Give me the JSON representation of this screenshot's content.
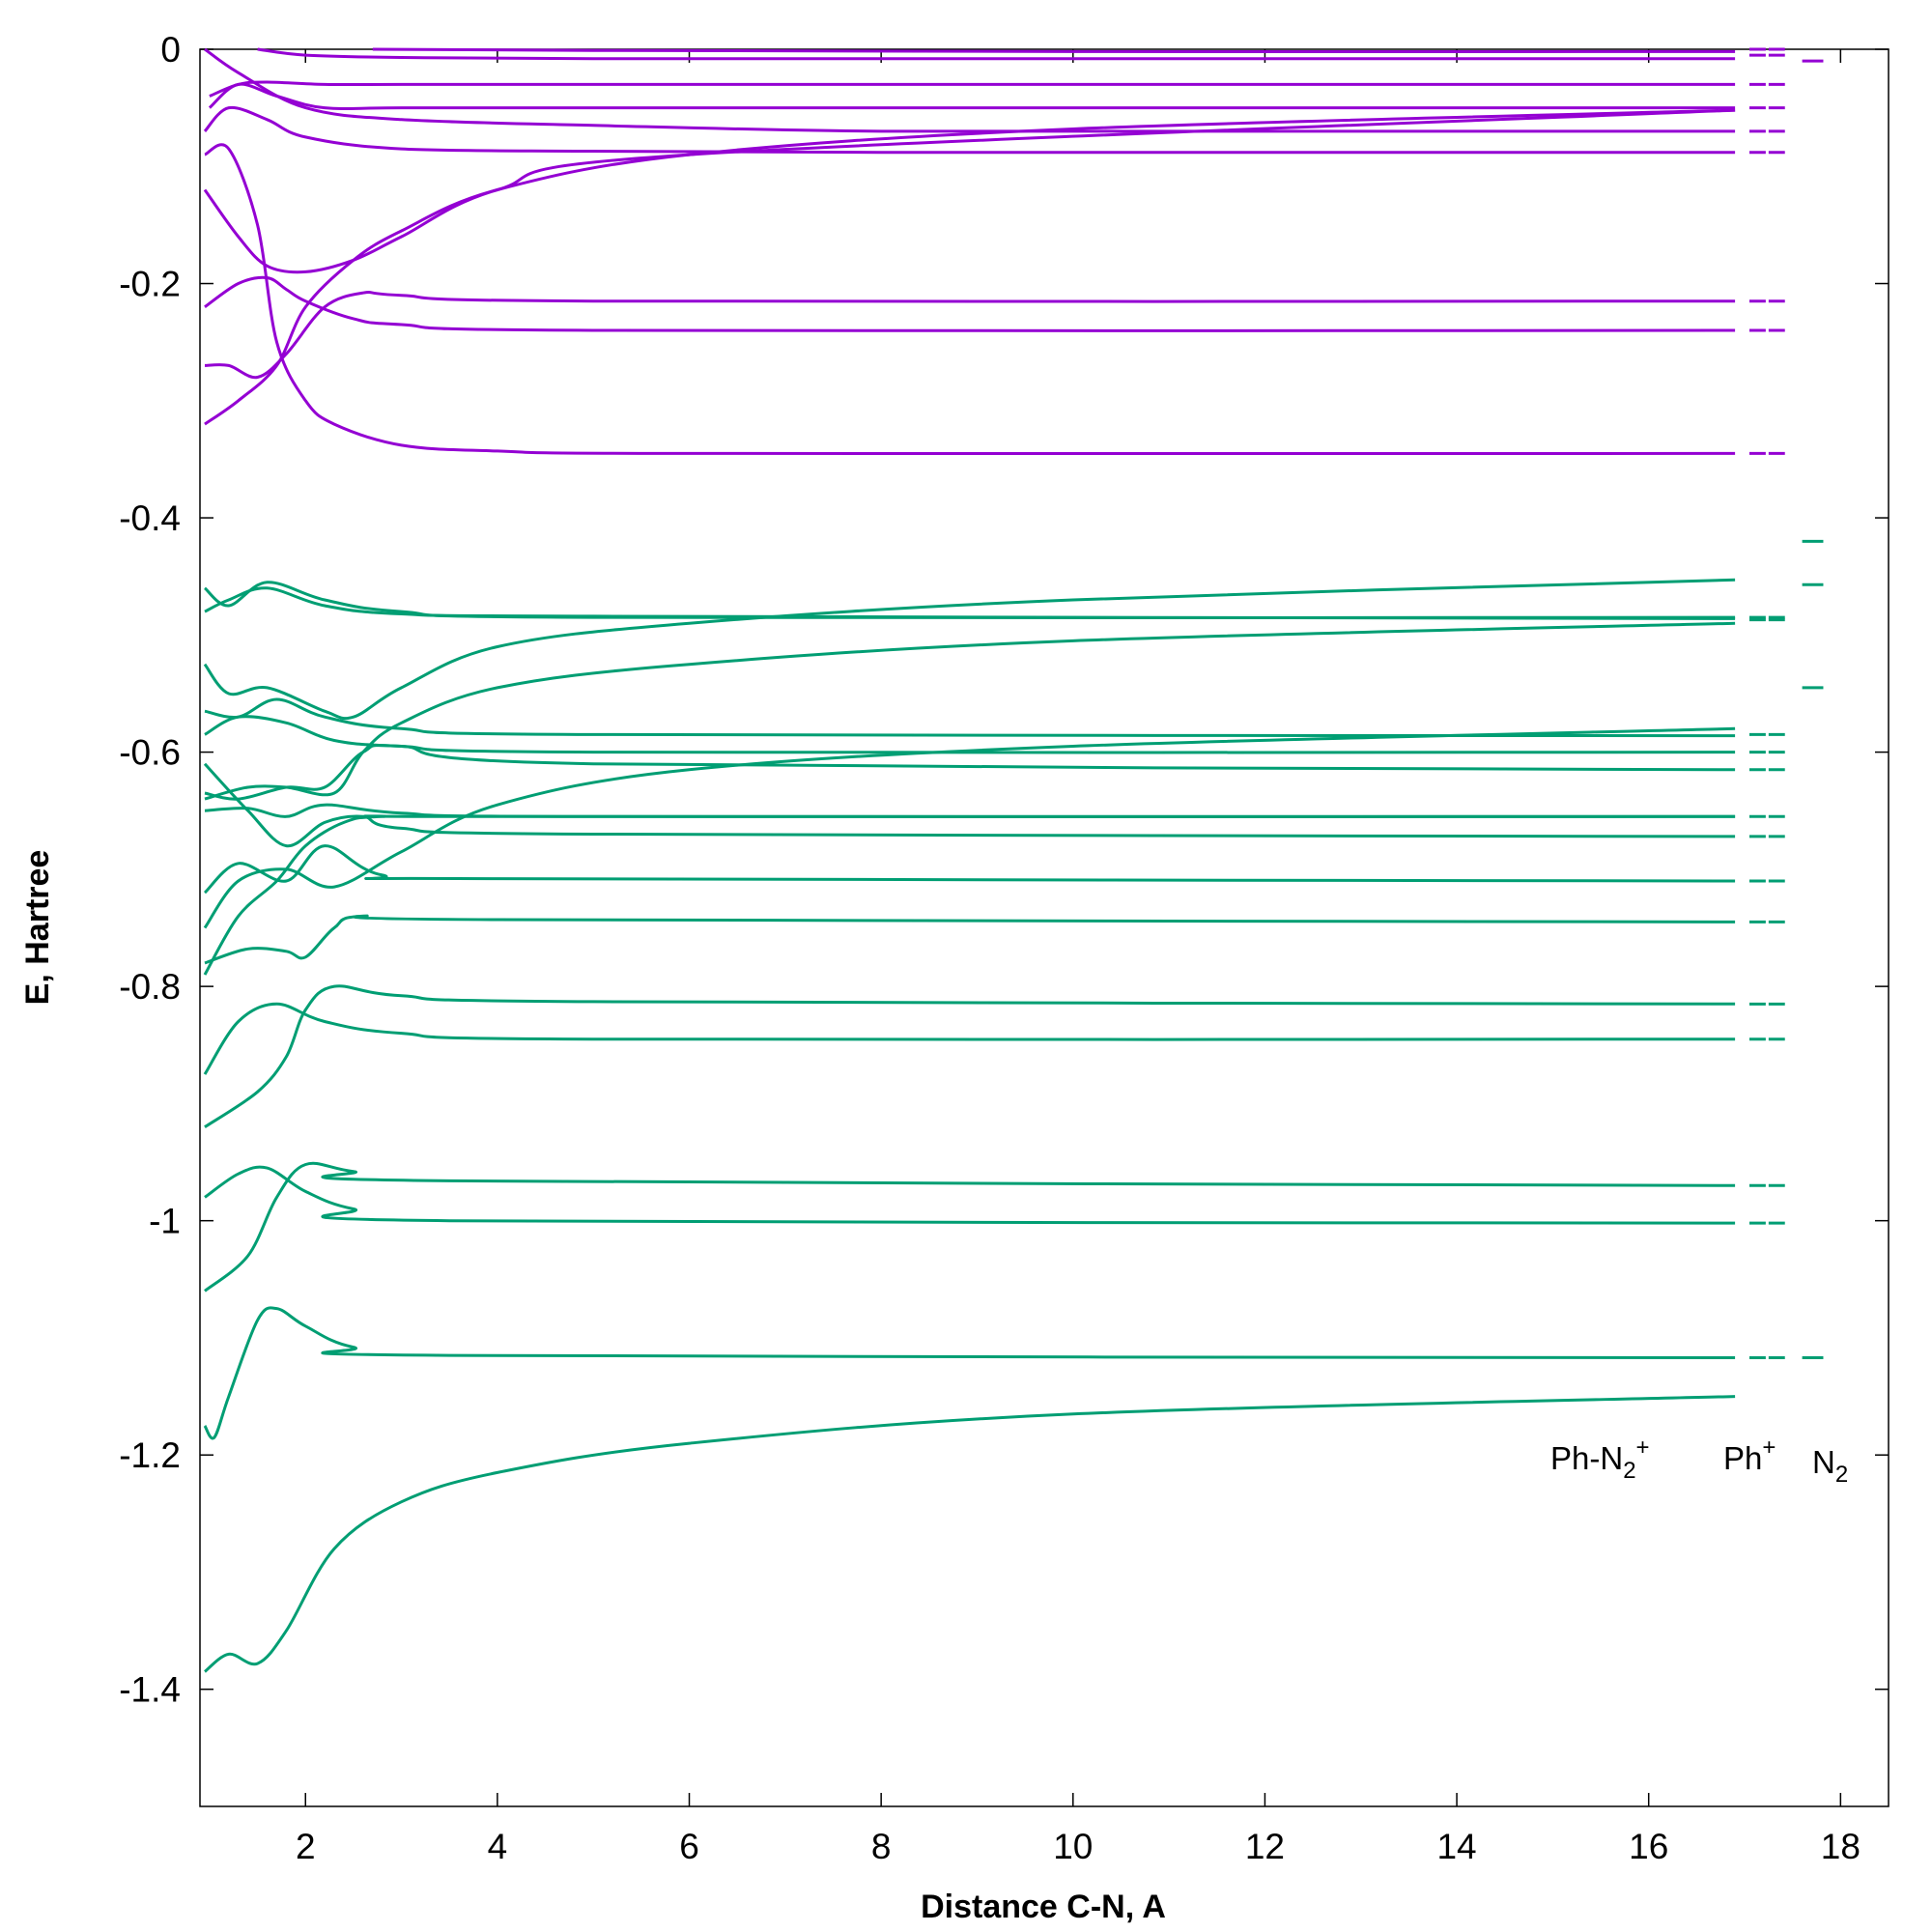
{
  "chart_data": {
    "type": "line",
    "xlabel": "Distance C-N, A",
    "ylabel": "E, Hartree",
    "xlim": [
      0.9,
      18.5
    ],
    "ylim": [
      -1.5,
      0
    ],
    "x_ticks": [
      2,
      4,
      6,
      8,
      10,
      12,
      14,
      16,
      18
    ],
    "y_ticks": [
      0,
      -0.2,
      -0.4,
      -0.6,
      -0.8,
      -1,
      -1.2,
      -1.4
    ],
    "x_tick_labels": [
      "2",
      "4",
      "6",
      "8",
      "10",
      "12",
      "14",
      "16",
      "18"
    ],
    "y_tick_labels": [
      "0",
      "-0.2",
      "-0.4",
      "-0.6",
      "-0.8",
      "-1",
      "-1.2",
      "-1.4"
    ],
    "grid": false,
    "colors": {
      "virtual": "#9400d3",
      "occupied": "#009e73"
    },
    "annotations": {
      "ph_n2": {
        "base": "Ph-N",
        "sub": "2",
        "sup": "+"
      },
      "ph": {
        "base": "Ph",
        "sup": "+"
      },
      "n2": {
        "base": "N",
        "sub": "2"
      }
    },
    "series": [
      {
        "group": "virtual",
        "x": [
          0.95,
          1.3,
          2.0,
          3.0,
          5.0,
          8.0,
          12.0,
          16.9
        ],
        "y": [
          0.0,
          -0.02,
          -0.05,
          -0.06,
          -0.065,
          -0.07,
          -0.07,
          -0.07
        ]
      },
      {
        "group": "virtual",
        "x": [
          0.95,
          1.2,
          1.6,
          2.0,
          3.0,
          5.0,
          8.0,
          12.0,
          16.9
        ],
        "y": [
          -0.07,
          -0.05,
          -0.06,
          -0.075,
          -0.085,
          -0.087,
          -0.088,
          -0.088,
          -0.088
        ]
      },
      {
        "group": "virtual",
        "x": [
          1.0,
          1.3,
          1.6,
          2.2,
          3.0,
          5.0,
          10.0,
          16.9
        ],
        "y": [
          -0.04,
          -0.03,
          -0.028,
          -0.03,
          -0.03,
          -0.03,
          -0.03,
          -0.03
        ]
      },
      {
        "group": "virtual",
        "x": [
          1.0,
          1.3,
          1.7,
          2.2,
          3.0,
          5.0,
          10.0,
          16.9
        ],
        "y": [
          -0.05,
          -0.03,
          -0.04,
          -0.05,
          -0.05,
          -0.05,
          -0.05,
          -0.05
        ]
      },
      {
        "group": "virtual",
        "x": [
          1.5,
          2.0,
          3.0,
          5.0,
          10.0,
          16.9
        ],
        "y": [
          -0.0,
          -0.005,
          -0.007,
          -0.008,
          -0.008,
          -0.008
        ]
      },
      {
        "group": "virtual",
        "x": [
          2.7,
          5.0,
          10.0,
          16.9
        ],
        "y": [
          0.0,
          -0.001,
          -0.002,
          -0.002
        ]
      },
      {
        "group": "virtual",
        "x": [
          0.95,
          1.3,
          1.6,
          1.8,
          2.0,
          2.5,
          3.0,
          5.0,
          16.9
        ],
        "y": [
          -0.22,
          -0.2,
          -0.195,
          -0.205,
          -0.215,
          -0.23,
          -0.235,
          -0.24,
          -0.24
        ]
      },
      {
        "group": "virtual",
        "x": [
          0.95,
          1.2,
          1.5,
          1.8,
          2.2,
          2.6,
          3.0,
          5.0,
          16.9
        ],
        "y": [
          -0.27,
          -0.27,
          -0.28,
          -0.26,
          -0.22,
          -0.208,
          -0.21,
          -0.215,
          -0.215
        ]
      },
      {
        "group": "virtual",
        "x": [
          0.95,
          1.3,
          1.6,
          2.0,
          2.5,
          3.0,
          4.0,
          6.0,
          16.9
        ],
        "y": [
          -0.12,
          -0.16,
          -0.185,
          -0.19,
          -0.18,
          -0.16,
          -0.12,
          -0.09,
          -0.052
        ]
      },
      {
        "group": "virtual",
        "x": [
          0.95,
          1.3,
          1.7,
          2.0,
          2.5,
          3.0,
          4.0,
          6.0,
          10.0,
          16.9
        ],
        "y": [
          -0.32,
          -0.3,
          -0.27,
          -0.22,
          -0.18,
          -0.155,
          -0.12,
          -0.09,
          -0.068,
          -0.052
        ]
      },
      {
        "group": "virtual",
        "x": [
          0.95,
          1.2,
          1.5,
          1.7,
          2.0,
          2.3,
          3.0,
          4.0,
          6.0,
          16.9
        ],
        "y": [
          -0.09,
          -0.085,
          -0.15,
          -0.25,
          -0.3,
          -0.32,
          -0.338,
          -0.343,
          -0.345,
          -0.345
        ]
      },
      {
        "group": "occupied",
        "x": [
          0.95,
          1.2,
          1.6,
          2.2,
          3.0,
          5.0,
          16.9
        ],
        "y": [
          -0.46,
          -0.475,
          -0.455,
          -0.47,
          -0.48,
          -0.485,
          -0.485
        ]
      },
      {
        "group": "occupied",
        "x": [
          0.95,
          1.2,
          1.6,
          2.2,
          3.0,
          5.0,
          16.9
        ],
        "y": [
          -0.48,
          -0.47,
          -0.46,
          -0.475,
          -0.482,
          -0.484,
          -0.486
        ]
      },
      {
        "group": "occupied",
        "x": [
          0.95,
          1.2,
          1.6,
          2.2,
          2.5,
          3.0,
          4.0,
          6.0,
          10.0,
          16.9
        ],
        "y": [
          -0.525,
          -0.55,
          -0.545,
          -0.565,
          -0.57,
          -0.545,
          -0.51,
          -0.49,
          -0.47,
          -0.453
        ]
      },
      {
        "group": "occupied",
        "x": [
          0.95,
          1.3,
          1.7,
          2.2,
          3.0,
          5.0,
          16.9
        ],
        "y": [
          -0.565,
          -0.57,
          -0.555,
          -0.57,
          -0.58,
          -0.585,
          -0.586
        ]
      },
      {
        "group": "occupied",
        "x": [
          0.95,
          1.3,
          1.8,
          2.3,
          3.0,
          5.0,
          16.9
        ],
        "y": [
          -0.585,
          -0.57,
          -0.575,
          -0.59,
          -0.595,
          -0.6,
          -0.6
        ]
      },
      {
        "group": "occupied",
        "x": [
          0.95,
          1.4,
          1.8,
          2.3,
          2.6,
          3.0,
          4.0,
          6.0,
          10.0,
          16.9
        ],
        "y": [
          -0.64,
          -0.63,
          -0.63,
          -0.635,
          -0.6,
          -0.575,
          -0.545,
          -0.525,
          -0.505,
          -0.49
        ]
      },
      {
        "group": "occupied",
        "x": [
          0.95,
          1.3,
          1.8,
          2.2,
          2.6,
          3.0,
          5.0,
          16.9
        ],
        "y": [
          -0.635,
          -0.64,
          -0.63,
          -0.63,
          -0.6,
          -0.595,
          -0.61,
          -0.615
        ]
      },
      {
        "group": "occupied",
        "x": [
          0.95,
          1.4,
          1.8,
          2.2,
          3.0,
          5.0,
          16.9
        ],
        "y": [
          -0.65,
          -0.648,
          -0.655,
          -0.645,
          -0.652,
          -0.655,
          -0.655
        ]
      },
      {
        "group": "occupied",
        "x": [
          0.95,
          1.4,
          1.8,
          2.2,
          2.6,
          3.0,
          5.0,
          16.9
        ],
        "y": [
          -0.61,
          -0.65,
          -0.68,
          -0.66,
          -0.655,
          -0.665,
          -0.67,
          -0.672
        ]
      },
      {
        "group": "occupied",
        "x": [
          0.95,
          1.3,
          1.8,
          2.2,
          2.8,
          4.0,
          16.9
        ],
        "y": [
          -0.72,
          -0.695,
          -0.71,
          -0.68,
          -0.705,
          -0.708,
          -0.71
        ]
      },
      {
        "group": "occupied",
        "x": [
          0.95,
          1.3,
          1.8,
          2.3,
          3.0,
          4.0,
          6.0,
          10.0,
          16.9
        ],
        "y": [
          -0.75,
          -0.71,
          -0.7,
          -0.715,
          -0.685,
          -0.645,
          -0.615,
          -0.595,
          -0.58
        ]
      },
      {
        "group": "occupied",
        "x": [
          0.95,
          1.4,
          1.8,
          2.0,
          2.3,
          2.6,
          4.0,
          16.9
        ],
        "y": [
          -0.78,
          -0.768,
          -0.77,
          -0.775,
          -0.75,
          -0.74,
          -0.743,
          -0.745
        ]
      },
      {
        "group": "occupied",
        "x": [
          0.95,
          1.3,
          1.7,
          2.0,
          2.4,
          2.8,
          4.0,
          16.9
        ],
        "y": [
          -0.79,
          -0.74,
          -0.71,
          -0.68,
          -0.66,
          -0.655,
          -0.655,
          -0.655
        ]
      },
      {
        "group": "occupied",
        "x": [
          0.95,
          1.3,
          1.7,
          2.2,
          3.0,
          5.0,
          16.9
        ],
        "y": [
          -0.875,
          -0.83,
          -0.815,
          -0.83,
          -0.84,
          -0.845,
          -0.845
        ]
      },
      {
        "group": "occupied",
        "x": [
          0.95,
          1.5,
          1.8,
          2.0,
          2.3,
          3.0,
          5.0,
          16.9
        ],
        "y": [
          -0.92,
          -0.89,
          -0.86,
          -0.82,
          -0.8,
          -0.808,
          -0.813,
          -0.815
        ]
      },
      {
        "group": "occupied",
        "x": [
          0.95,
          1.3,
          1.6,
          2.0,
          2.5,
          3.5,
          16.9
        ],
        "y": [
          -0.98,
          -0.96,
          -0.955,
          -0.975,
          -0.99,
          -1.0,
          -1.002
        ]
      },
      {
        "group": "occupied",
        "x": [
          0.95,
          1.4,
          1.7,
          2.0,
          2.5,
          3.5,
          16.9
        ],
        "y": [
          -1.06,
          -1.03,
          -0.98,
          -0.952,
          -0.958,
          -0.966,
          -0.97
        ]
      },
      {
        "group": "occupied",
        "x": [
          0.95,
          1.05,
          1.2,
          1.5,
          1.7,
          2.0,
          2.5,
          3.5,
          16.9
        ],
        "y": [
          -1.175,
          -1.185,
          -1.15,
          -1.085,
          -1.075,
          -1.09,
          -1.108,
          -1.115,
          -1.117
        ]
      },
      {
        "group": "occupied",
        "x": [
          0.95,
          1.2,
          1.5,
          1.8,
          2.3,
          3.0,
          4.0,
          6.0,
          10.0,
          16.9
        ],
        "y": [
          -1.385,
          -1.37,
          -1.378,
          -1.35,
          -1.28,
          -1.24,
          -1.215,
          -1.19,
          -1.165,
          -1.15
        ]
      }
    ],
    "ph_n2_markers": [
      -0.0,
      -0.005,
      -0.03,
      -0.05,
      -0.07,
      -0.088,
      -0.215,
      -0.24,
      -0.345,
      -0.485,
      -0.487,
      -0.585,
      -0.6,
      -0.615,
      -0.655,
      -0.672,
      -0.71,
      -0.745,
      -0.815,
      -0.845,
      -0.97,
      -1.002,
      -1.117
    ],
    "n2_markers": [
      -0.01,
      -0.42,
      -0.457,
      -0.545,
      -1.117
    ]
  }
}
